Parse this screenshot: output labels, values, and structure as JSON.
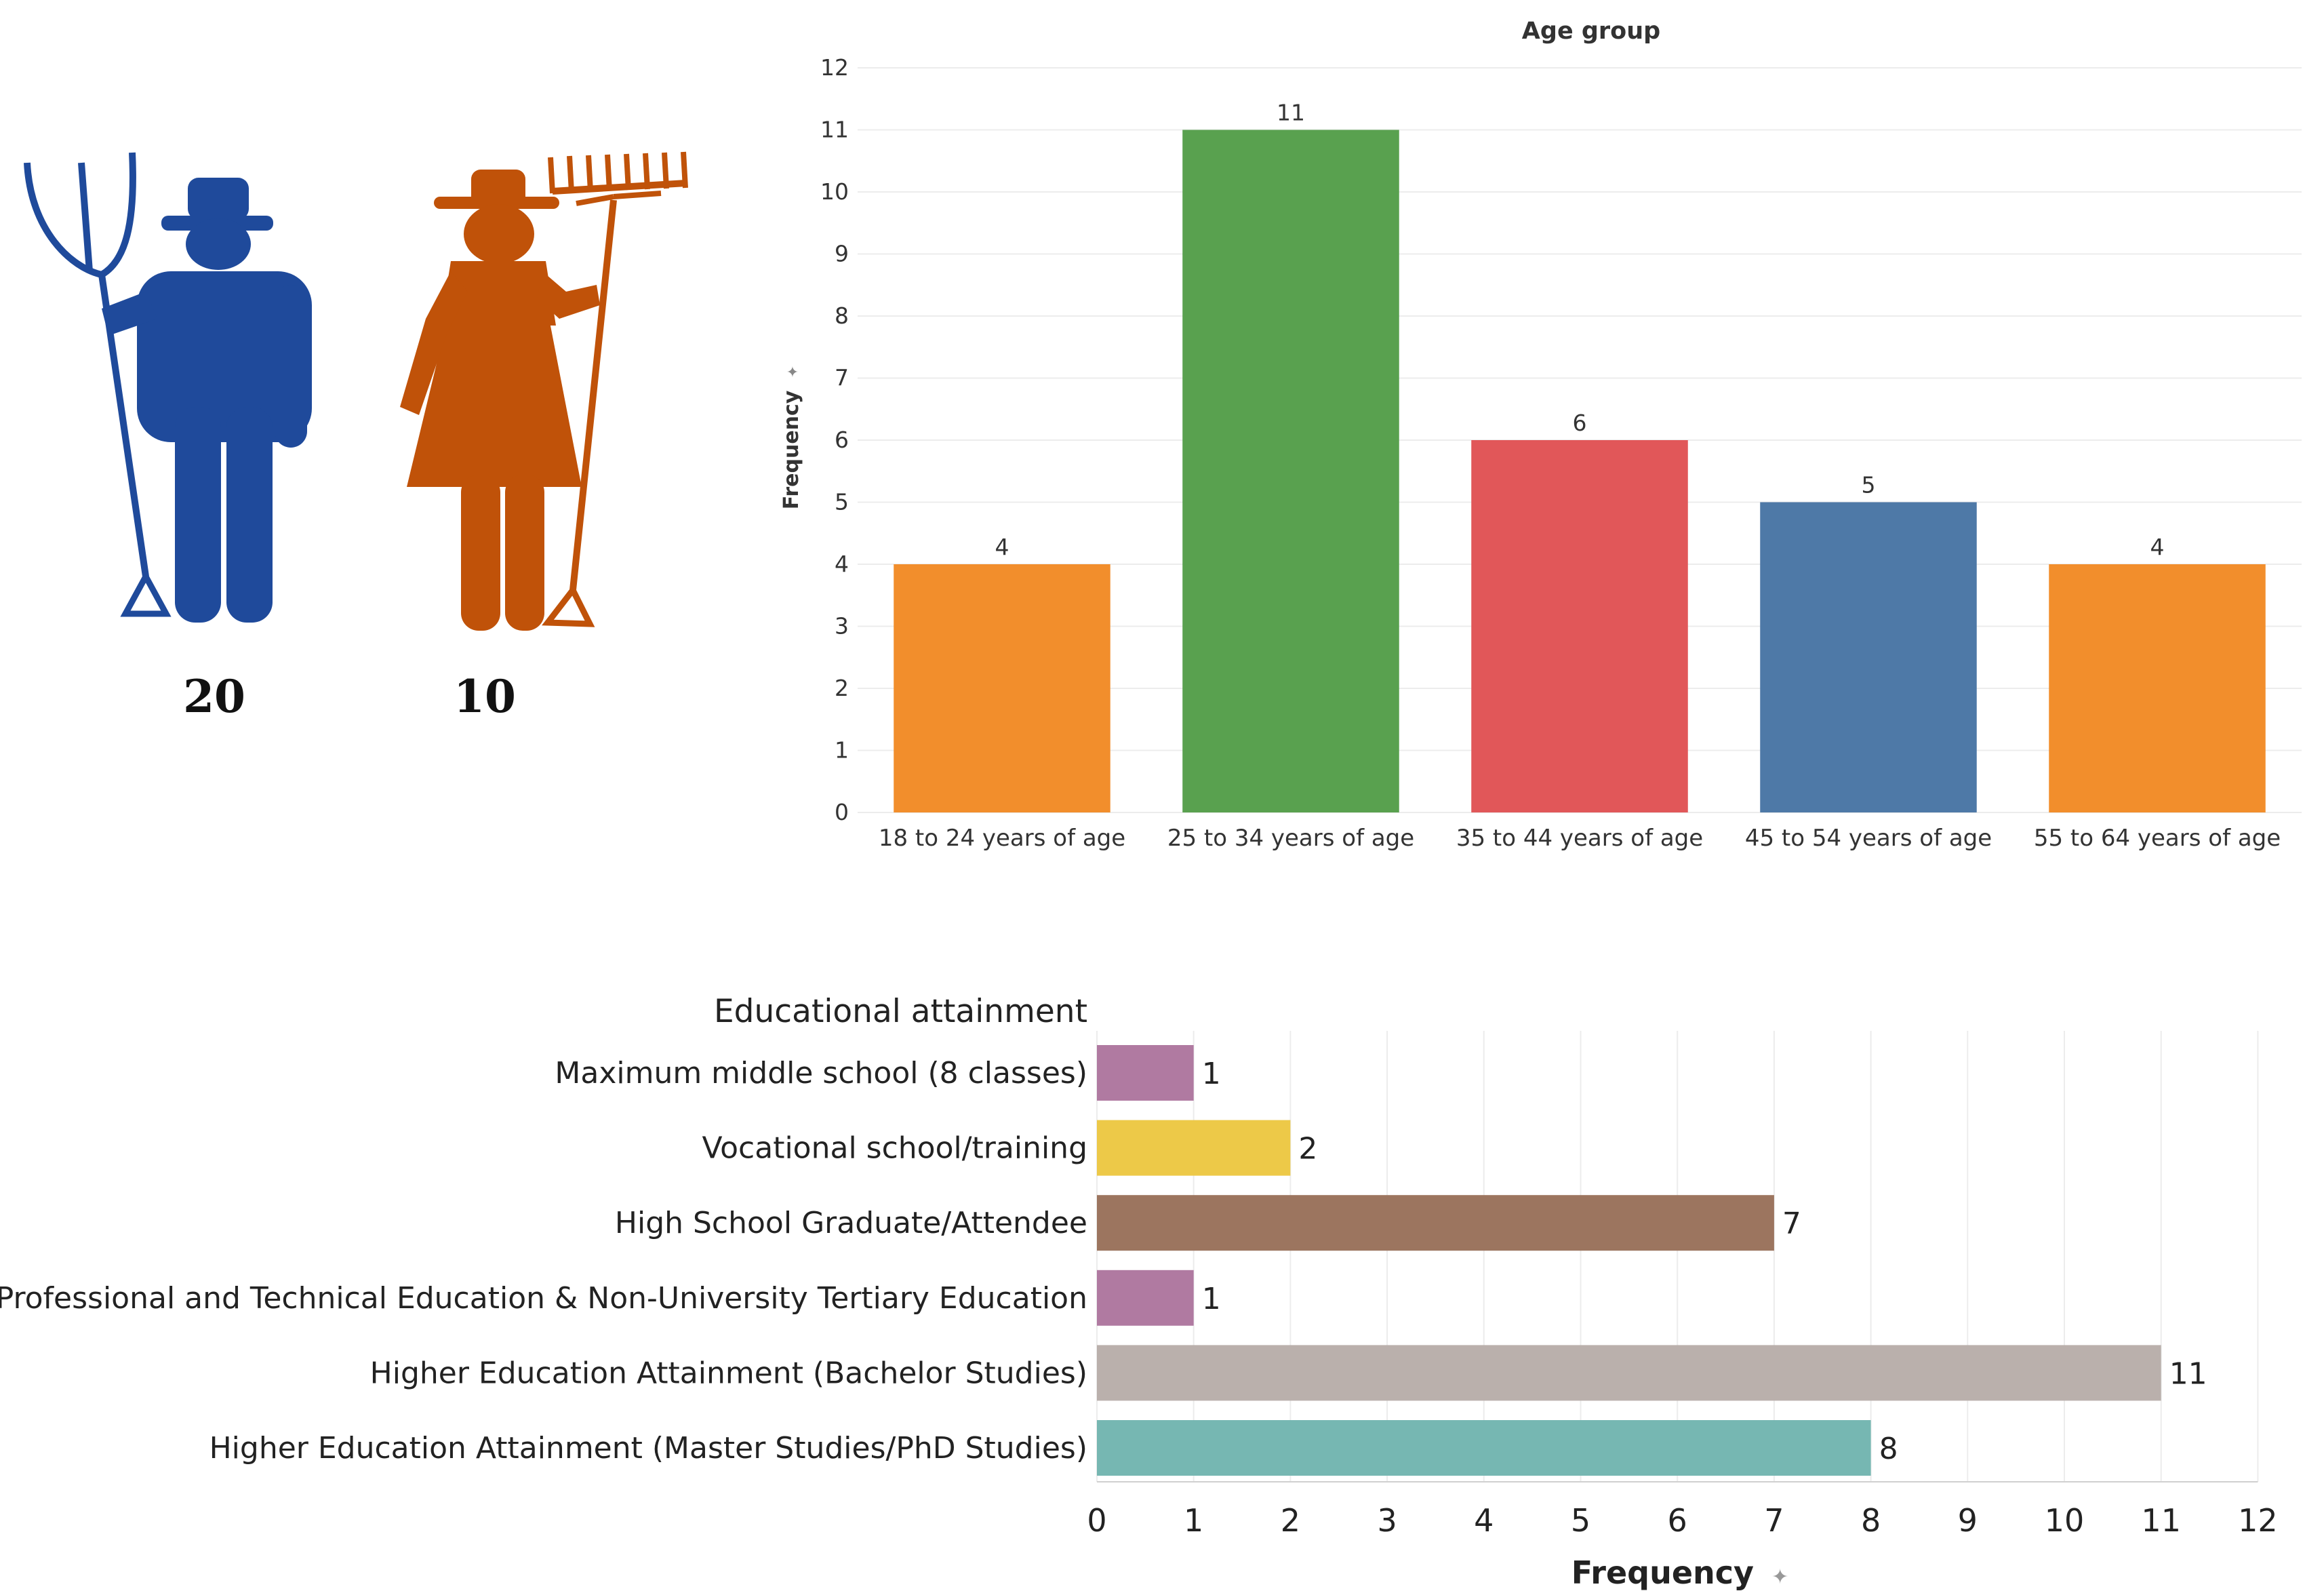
{
  "colors": {
    "male": "#1f4a9b",
    "female": "#c05209",
    "grid": "#ececec",
    "axis": "#d0d0d0",
    "text": "#333333"
  },
  "gender": {
    "male": {
      "icon": "farmer-male-pitchfork-icon",
      "count": "20",
      "color": "#1f4a9b"
    },
    "female": {
      "icon": "farmer-female-rake-icon",
      "count": "10",
      "color": "#c05209"
    }
  },
  "age_chart": {
    "pin_glyph": "✦",
    "axis_label_text": "Frequency"
  },
  "edu_chart": {
    "pin_glyph": "✦"
  },
  "chart_data": [
    {
      "type": "bar",
      "title": "Age group",
      "categories": [
        "18 to 24 years of age",
        "25 to 34 years of age",
        "35 to 44 years of age",
        "45 to 54 years of age",
        "55 to 64 years of age"
      ],
      "values": [
        4,
        11,
        6,
        5,
        4
      ],
      "colors": [
        "#f28e2c",
        "#59a14f",
        "#e15759",
        "#4e79a7",
        "#f28e2c"
      ],
      "xlabel": "",
      "ylabel": "Frequency",
      "ylim": [
        0,
        12
      ],
      "yticks": [
        0,
        1,
        2,
        3,
        4,
        5,
        6,
        7,
        8,
        9,
        10,
        11,
        12
      ],
      "grid": true
    },
    {
      "type": "bar",
      "orientation": "horizontal",
      "title": "Educational attainment",
      "categories": [
        "Maximum middle school (8 classes)",
        "Vocational school/training",
        "High School Graduate/Attendee",
        "Professional and Technical Education & Non-University Tertiary Education",
        "Higher Education Attainment (Bachelor Studies)",
        "Higher Education Attainment (Master Studies/PhD Studies)"
      ],
      "values": [
        1,
        2,
        7,
        1,
        11,
        8
      ],
      "colors": [
        "#b07aa1",
        "#edc948",
        "#9c755f",
        "#b07aa1",
        "#bab0ac",
        "#76b7b2"
      ],
      "xlabel": "Frequency",
      "ylabel": "",
      "xlim": [
        0,
        12
      ],
      "xticks": [
        0,
        1,
        2,
        3,
        4,
        5,
        6,
        7,
        8,
        9,
        10,
        11,
        12
      ],
      "grid": true
    }
  ]
}
